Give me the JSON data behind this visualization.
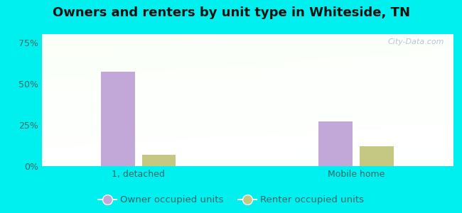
{
  "title": "Owners and renters by unit type in Whiteside, TN",
  "categories": [
    "1, detached",
    "Mobile home"
  ],
  "owner_values": [
    57,
    27
  ],
  "renter_values": [
    7,
    12
  ],
  "owner_color": "#c2a8d8",
  "renter_color": "#c5c882",
  "owner_label": "Owner occupied units",
  "renter_label": "Renter occupied units",
  "yticks": [
    0,
    25,
    50,
    75
  ],
  "ytick_labels": [
    "0%",
    "25%",
    "50%",
    "75%"
  ],
  "ylim": [
    0,
    80
  ],
  "bar_width": 0.28,
  "outer_background": "#00f0f0",
  "watermark": "City-Data.com",
  "title_fontsize": 13,
  "tick_fontsize": 9,
  "legend_fontsize": 9.5,
  "grid_color": "#ffffff",
  "text_color": "#336666"
}
